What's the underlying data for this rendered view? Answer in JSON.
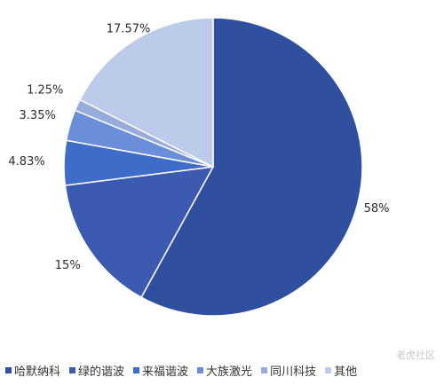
{
  "chart_data": {
    "type": "pie",
    "categories": [
      "哈默纳科",
      "绿的谐波",
      "来福谐波",
      "大族激光",
      "同川科技",
      "其他"
    ],
    "values": [
      58,
      15,
      4.83,
      3.35,
      1.25,
      17.57
    ],
    "labels": [
      "58%",
      "15%",
      "4.83%",
      "3.35%",
      "1.25%",
      "17.57%"
    ],
    "colors": [
      "#2f4f9f",
      "#3a5bb0",
      "#3f6cc9",
      "#6a8fd8",
      "#98acdc",
      "#bccbe9"
    ],
    "legend_position": "bottom"
  },
  "watermark": "老虎社区"
}
